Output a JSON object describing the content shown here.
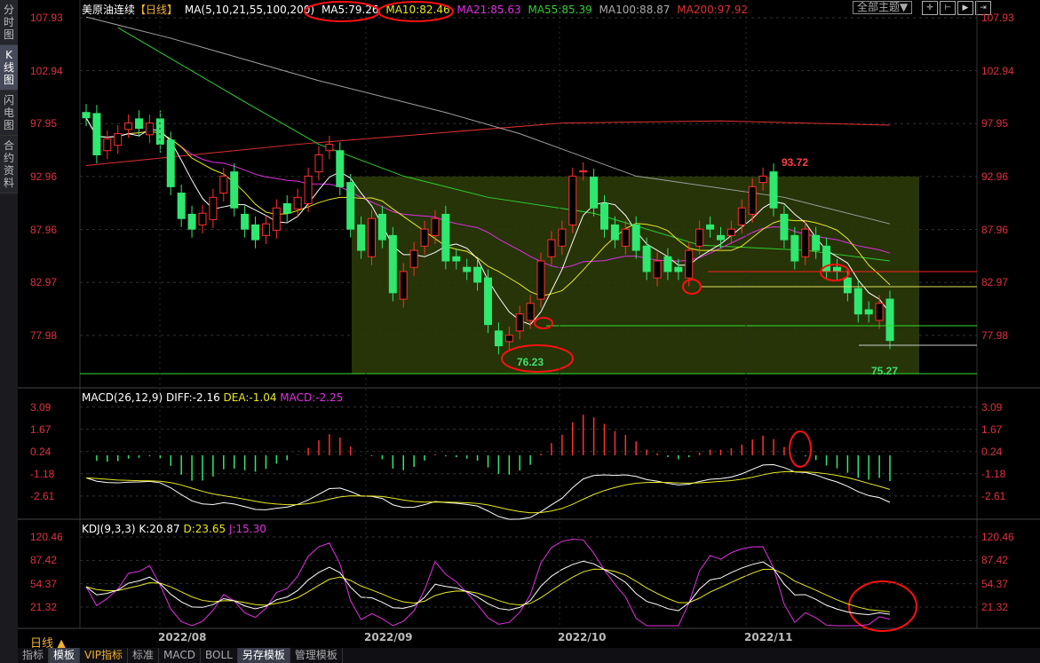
{
  "sidebar": {
    "tabs": [
      "分\n时\n图",
      "K\n线\n图",
      "闪\n电\n图",
      "合\n约\n资\n料"
    ],
    "active": 1
  },
  "header": {
    "symbol": "美原油连续",
    "period": "【日线】",
    "ma_params": "MA(5,10,21,55,100,200)",
    "ma5": "MA5:79.26",
    "ma10": "MA10:82.46",
    "ma21": "MA21:85.63",
    "ma55": "MA55:85.39",
    "ma100": "MA100:88.87",
    "ma200": "MA200:97.92"
  },
  "toolbar": {
    "theme": "全部主题▼",
    "icons": [
      "crosshair-icon",
      "zoom-in-icon",
      "play-icon",
      "goto-end-icon"
    ]
  },
  "price_axis": [
    "107.93",
    "102.94",
    "97.95",
    "92.96",
    "87.96",
    "82.97",
    "77.98"
  ],
  "macd": {
    "title": "MACD(26,12,9)",
    "diff": "DIFF:-2.16",
    "dea": "DEA:-1.04",
    "macd": "MACD:-2.25",
    "axis": [
      "3.09",
      "1.67",
      "0.24",
      "-1.18",
      "-2.61"
    ]
  },
  "kdj": {
    "title": "KDJ(9,3,3)",
    "k": "K:20.87",
    "d": "D:23.65",
    "j": "J:15.30",
    "axis": [
      "120.46",
      "87.42",
      "54.37",
      "21.32"
    ]
  },
  "annotations": {
    "high": "93.72",
    "low1": "76.23",
    "low2": "75.27"
  },
  "dates": [
    "2022/08",
    "2022/09",
    "2022/10",
    "2022/11"
  ],
  "period_label": "日线 ▲",
  "bottom_tabs": [
    "指标",
    "模板",
    "VIP指标",
    "标准",
    "MACD",
    "BOLL",
    "另存模板",
    "管理模板"
  ],
  "colors": {
    "up": "#ff3030",
    "down": "#2ee870",
    "ma5": "#ffffff",
    "ma10": "#e8e820",
    "ma21": "#e030e0",
    "ma55": "#30d030",
    "ma100": "#a0a0a0",
    "ma200": "#e03030",
    "axis": "#e03040",
    "zone": "#2a3a08"
  },
  "chart_data": {
    "type": "candlestick",
    "closes": [
      98.5,
      95,
      96.5,
      97,
      98,
      97.5,
      98,
      96,
      92,
      89,
      88,
      89.5,
      91,
      93,
      90,
      88,
      87,
      88.5,
      90,
      89.5,
      91,
      93,
      95,
      96,
      92,
      88,
      86,
      89,
      87,
      82,
      84,
      86,
      88,
      89,
      85,
      85,
      84,
      83,
      79,
      77,
      78,
      80,
      81,
      85,
      87,
      88,
      93,
      93.5,
      90,
      88,
      87,
      88,
      86,
      84,
      85,
      84,
      84,
      86,
      88,
      88,
      87,
      88,
      90,
      92,
      93,
      90,
      87,
      85,
      88,
      86,
      84,
      84,
      82,
      80,
      80,
      81,
      77.5
    ],
    "ma55": [
      [
        3,
        107
      ],
      [
        15,
        100
      ],
      [
        22,
        96
      ],
      [
        30,
        93
      ],
      [
        38,
        91
      ],
      [
        48,
        89.5
      ],
      [
        58,
        86.5
      ],
      [
        68,
        86
      ],
      [
        76,
        85
      ]
    ],
    "ma100": [
      [
        0,
        108
      ],
      [
        8,
        106
      ],
      [
        15,
        104
      ],
      [
        22,
        102
      ],
      [
        34,
        99
      ],
      [
        41,
        97
      ],
      [
        52,
        93
      ],
      [
        66,
        91
      ],
      [
        76,
        88.5
      ]
    ],
    "ma200": [
      [
        0,
        94
      ],
      [
        20,
        96
      ],
      [
        45,
        98
      ],
      [
        60,
        98.2
      ],
      [
        76,
        97.8
      ]
    ],
    "ylim": [
      73.5,
      107.93
    ]
  }
}
